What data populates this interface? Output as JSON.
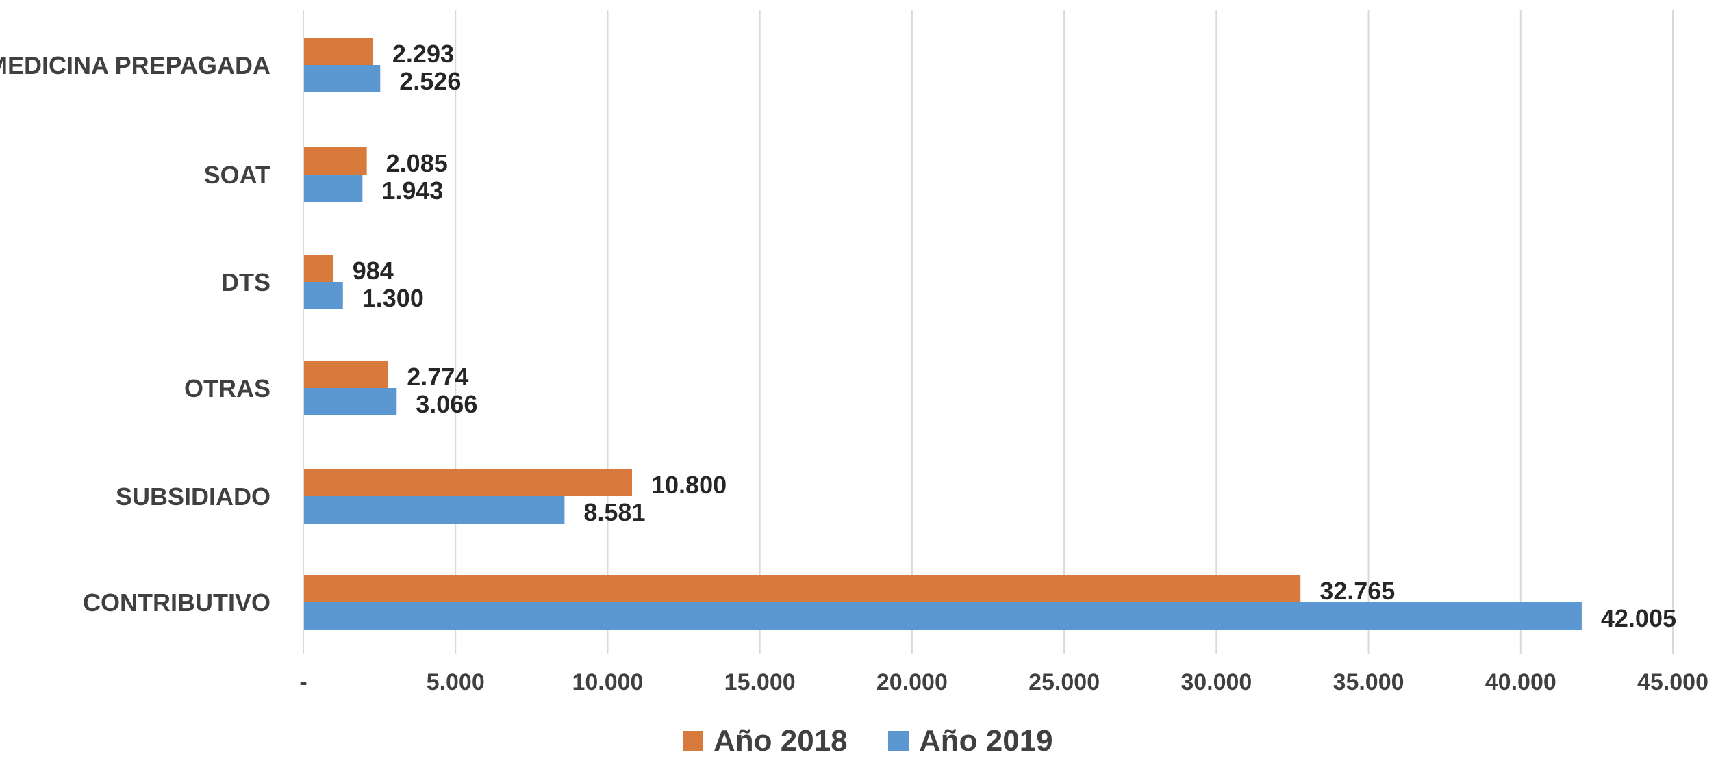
{
  "chart_data": {
    "type": "bar",
    "orientation": "horizontal",
    "categories": [
      "CONTRIBUTIVO",
      "SUBSIDIADO",
      "OTRAS",
      "DTS",
      "SOAT",
      "MEDICINA PREPAGADA"
    ],
    "series": [
      {
        "name": "Año 2018",
        "color": "#D97A3D",
        "values": [
          32765,
          10800,
          2774,
          984,
          2085,
          2293
        ],
        "labels": [
          "32.765",
          "10.800",
          "2.774",
          "984",
          "2.085",
          "2.293"
        ]
      },
      {
        "name": "Año 2019",
        "color": "#5B97D1",
        "values": [
          42005,
          8581,
          3066,
          1300,
          1943,
          2526
        ],
        "labels": [
          "42.005",
          "8.581",
          "3.066",
          "1.300",
          "1.943",
          "2.526"
        ]
      }
    ],
    "x_ticks": [
      0,
      5000,
      10000,
      15000,
      20000,
      25000,
      30000,
      35000,
      40000,
      45000
    ],
    "x_tick_labels": [
      "-",
      "5.000",
      "10.000",
      "15.000",
      "20.000",
      "25.000",
      "30.000",
      "35.000",
      "40.000",
      "45.000"
    ],
    "xlim": [
      0,
      45000
    ],
    "grid": true,
    "legend_position": "bottom-center"
  }
}
